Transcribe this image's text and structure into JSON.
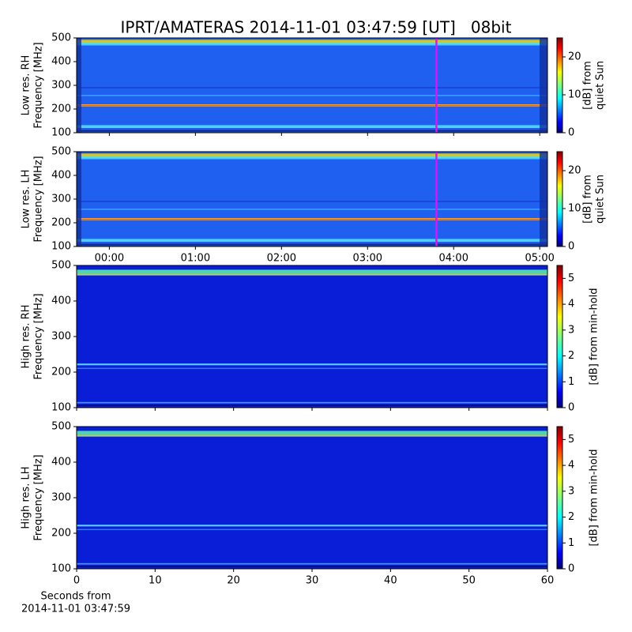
{
  "title": "IPRT/AMATERAS 2014-11-01 03:47:59 [UT]   08bit",
  "chart_data": [
    {
      "type": "heatmap",
      "ylabel": [
        "Low res. RH",
        "Frequency [MHz]"
      ],
      "ylim": [
        100,
        500
      ],
      "yticks": [
        100,
        200,
        300,
        400,
        500
      ],
      "xlim": [
        -0.38,
        5.09
      ],
      "xticks": [
        0,
        1,
        2,
        3,
        4,
        5
      ],
      "marker_x": 3.8,
      "marker_color": "#ff00ff",
      "colorbar": {
        "label": [
          "[dB] from",
          "quiet Sun"
        ],
        "lim": [
          0,
          25
        ],
        "ticks": [
          0,
          10,
          20
        ],
        "colormap": "jet"
      }
    },
    {
      "type": "heatmap",
      "ylabel": [
        "Low res. LH",
        "Frequency [MHz]"
      ],
      "ylim": [
        100,
        500
      ],
      "yticks": [
        100,
        200,
        300,
        400,
        500
      ],
      "xlim": [
        -0.38,
        5.09
      ],
      "xticks": [
        {
          "value": 0,
          "label": "00:00"
        },
        {
          "value": 1,
          "label": "01:00"
        },
        {
          "value": 2,
          "label": "02:00"
        },
        {
          "value": 3,
          "label": "03:00"
        },
        {
          "value": 4,
          "label": "04:00"
        },
        {
          "value": 5,
          "label": "05:00"
        }
      ],
      "marker_x": 3.8,
      "marker_color": "#ff00ff",
      "colorbar": {
        "label": [
          "[dB] from",
          "quiet Sun"
        ],
        "lim": [
          0,
          25
        ],
        "ticks": [
          0,
          10,
          20
        ],
        "colormap": "jet"
      }
    },
    {
      "type": "heatmap",
      "ylabel": [
        "High res. RH",
        "Frequency [MHz]"
      ],
      "ylim": [
        100,
        500
      ],
      "yticks": [
        100,
        200,
        300,
        400,
        500
      ],
      "xlim": [
        0,
        60
      ],
      "xticks": [
        0,
        10,
        20,
        30,
        40,
        50,
        60
      ],
      "xtick_labels": false,
      "colorbar": {
        "label": [
          "[dB] from min-hold"
        ],
        "lim": [
          0,
          5.5
        ],
        "ticks": [
          0,
          1,
          2,
          3,
          4,
          5
        ],
        "colormap": "jet"
      }
    },
    {
      "type": "heatmap",
      "ylabel": [
        "High res. LH",
        "Frequency [MHz]"
      ],
      "ylim": [
        100,
        500
      ],
      "yticks": [
        100,
        200,
        300,
        400,
        500
      ],
      "xlim": [
        0,
        60
      ],
      "xticks": [
        0,
        10,
        20,
        30,
        40,
        50,
        60
      ],
      "xtick_labels": true,
      "xlabel": [
        "Seconds from",
        "2014-11-01 03:47:59"
      ],
      "colorbar": {
        "label": [
          "[dB] from min-hold"
        ],
        "lim": [
          0,
          5.5
        ],
        "ticks": [
          0,
          1,
          2,
          3,
          4,
          5
        ],
        "colormap": "jet"
      }
    }
  ]
}
